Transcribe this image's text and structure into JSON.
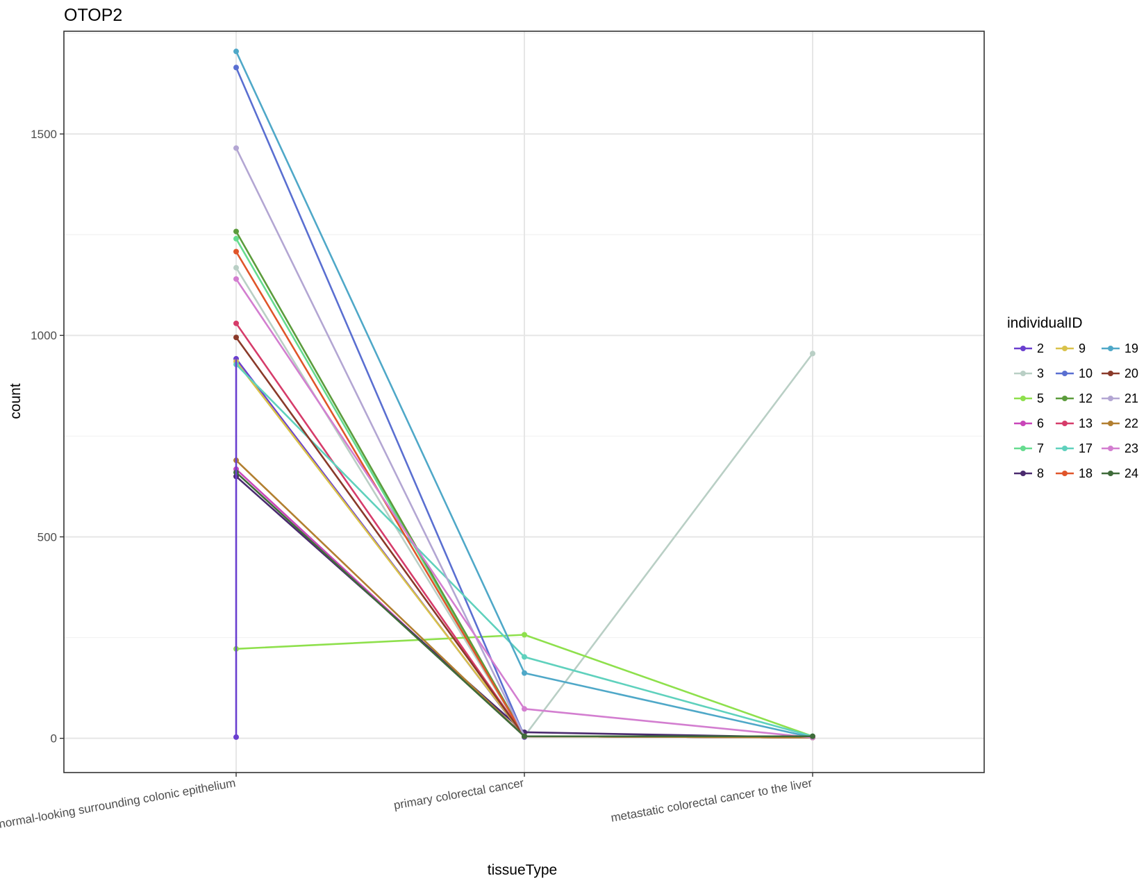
{
  "chart_data": {
    "type": "line",
    "title": "OTOP2",
    "xlabel": "tissueType",
    "ylabel": "count",
    "categories": [
      "normal-looking surrounding colonic epithelium",
      "primary colorectal cancer",
      "metastatic colorectal cancer to the liver"
    ],
    "ylim": [
      -85,
      1755
    ],
    "yticks": [
      0,
      500,
      1000,
      1500
    ],
    "grid": true,
    "legend": {
      "title": "individualID",
      "placement": "right",
      "columns": 3
    },
    "series": [
      {
        "name": "2",
        "color": "#6a3fcf",
        "values": [
          942,
          3,
          null
        ]
      },
      {
        "name": "3",
        "color": "#b9cfc5",
        "values": [
          1168,
          5,
          955
        ]
      },
      {
        "name": "5",
        "color": "#8ee04c",
        "values": [
          222,
          257,
          5
        ]
      },
      {
        "name": "6",
        "color": "#c946b9",
        "values": [
          668,
          5,
          2
        ]
      },
      {
        "name": "7",
        "color": "#66dc8f",
        "values": [
          1240,
          5,
          2
        ]
      },
      {
        "name": "8",
        "color": "#4a2a6e",
        "values": [
          650,
          15,
          2
        ]
      },
      {
        "name": "9",
        "color": "#d9c24a",
        "values": [
          935,
          5,
          2
        ]
      },
      {
        "name": "10",
        "color": "#5a6fd1",
        "values": [
          1665,
          5,
          2
        ]
      },
      {
        "name": "12",
        "color": "#5c9c3c",
        "values": [
          1258,
          5,
          2
        ]
      },
      {
        "name": "13",
        "color": "#d63c6a",
        "values": [
          1030,
          5,
          2
        ]
      },
      {
        "name": "17",
        "color": "#5fd1bd",
        "values": [
          928,
          202,
          5
        ]
      },
      {
        "name": "18",
        "color": "#e0552a",
        "values": [
          1208,
          5,
          2
        ]
      },
      {
        "name": "19",
        "color": "#4fa8c8",
        "values": [
          1705,
          162,
          2
        ]
      },
      {
        "name": "20",
        "color": "#8a3a2a",
        "values": [
          995,
          5,
          2
        ]
      },
      {
        "name": "21",
        "color": "#b3a6d3",
        "values": [
          1465,
          5,
          2
        ]
      },
      {
        "name": "22",
        "color": "#b27f30",
        "values": [
          690,
          5,
          2
        ]
      },
      {
        "name": "23",
        "color": "#d37ed0",
        "values": [
          1140,
          73,
          2
        ]
      },
      {
        "name": "24",
        "color": "#3f6b3a",
        "values": [
          660,
          5,
          5
        ]
      }
    ]
  }
}
